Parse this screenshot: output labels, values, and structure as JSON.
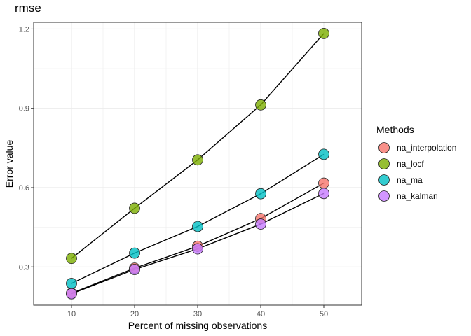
{
  "chart_data": {
    "type": "line",
    "title": "rmse",
    "xlabel": "Percent of missing observations",
    "ylabel": "Error value",
    "x": [
      10,
      20,
      30,
      40,
      50
    ],
    "xlim": [
      4,
      56
    ],
    "ylim": [
      0.155,
      1.225
    ],
    "x_ticks": [
      10,
      20,
      30,
      40,
      50
    ],
    "y_ticks": [
      0.3,
      0.6,
      0.9,
      1.2
    ],
    "y_tick_labels": [
      "0.3",
      "0.6",
      "0.9",
      "1.2"
    ],
    "grid": true,
    "legend_title": "Methods",
    "legend_position": "right",
    "series": [
      {
        "name": "na_interpolation",
        "color": "#F8766D",
        "values": [
          0.2,
          0.295,
          0.378,
          0.483,
          0.617
        ]
      },
      {
        "name": "na_locf",
        "color": "#7CAE00",
        "values": [
          0.332,
          0.522,
          0.705,
          0.913,
          1.183
        ]
      },
      {
        "name": "na_ma",
        "color": "#00BFC4",
        "values": [
          0.237,
          0.352,
          0.453,
          0.577,
          0.726
        ]
      },
      {
        "name": "na_kalman",
        "color": "#C77CFF",
        "values": [
          0.198,
          0.29,
          0.368,
          0.462,
          0.578
        ]
      }
    ]
  }
}
